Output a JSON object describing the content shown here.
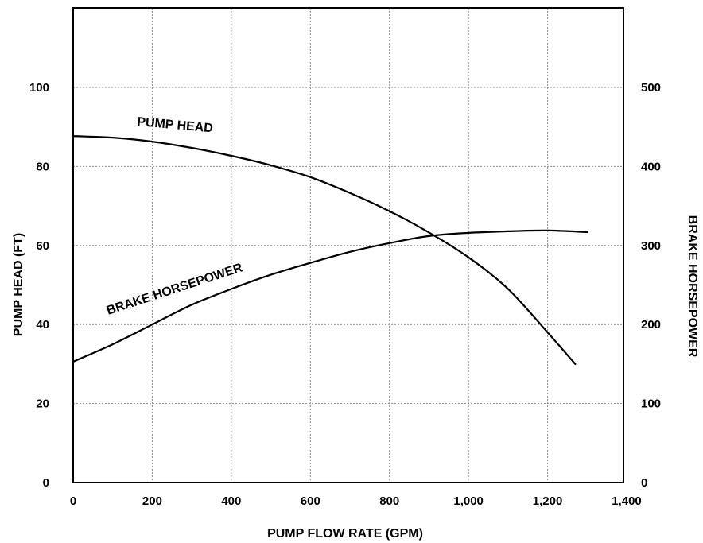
{
  "chart_data": {
    "type": "line",
    "xlabel": "PUMP FLOW RATE (GPM)",
    "ylabel": "PUMP HEAD (FT)",
    "y2label": "BRAKE HORSEPOWER",
    "xlim": [
      0,
      1400
    ],
    "ylim": [
      0,
      120
    ],
    "y2lim": [
      0,
      600
    ],
    "grid": true,
    "x_ticks": [
      {
        "value": 0,
        "label": "0"
      },
      {
        "value": 200,
        "label": "200"
      },
      {
        "value": 400,
        "label": "400"
      },
      {
        "value": 600,
        "label": "600"
      },
      {
        "value": 800,
        "label": "800"
      },
      {
        "value": 1000,
        "label": "1,000"
      },
      {
        "value": 1200,
        "label": "1,200"
      },
      {
        "value": 1400,
        "label": "1,400"
      }
    ],
    "y_ticks": [
      {
        "value": 0,
        "label": "0"
      },
      {
        "value": 20,
        "label": "20"
      },
      {
        "value": 40,
        "label": "40"
      },
      {
        "value": 60,
        "label": "60"
      },
      {
        "value": 80,
        "label": "80"
      },
      {
        "value": 100,
        "label": "100"
      }
    ],
    "y2_ticks": [
      {
        "value": 0,
        "label": "0"
      },
      {
        "value": 100,
        "label": "100"
      },
      {
        "value": 200,
        "label": "200"
      },
      {
        "value": 300,
        "label": "300"
      },
      {
        "value": 400,
        "label": "400"
      },
      {
        "value": 500,
        "label": "500"
      }
    ],
    "series": [
      {
        "name": "PUMP HEAD",
        "axis": "left",
        "x": [
          0,
          100,
          200,
          300,
          400,
          500,
          600,
          700,
          800,
          900,
          1000,
          1100,
          1200,
          1270
        ],
        "y": [
          87.7,
          87.3,
          86.3,
          84.7,
          82.7,
          80.3,
          77.3,
          73.3,
          68.7,
          63.3,
          57.0,
          49.0,
          38.0,
          30.0
        ]
      },
      {
        "name": "BRAKE HORSEPOWER",
        "axis": "right",
        "x": [
          0,
          100,
          200,
          300,
          400,
          500,
          600,
          700,
          800,
          900,
          1000,
          1100,
          1200,
          1300
        ],
        "y": [
          153,
          175,
          200,
          225,
          245,
          263,
          278,
          292,
          303,
          312,
          316,
          318,
          319,
          317
        ]
      }
    ]
  }
}
